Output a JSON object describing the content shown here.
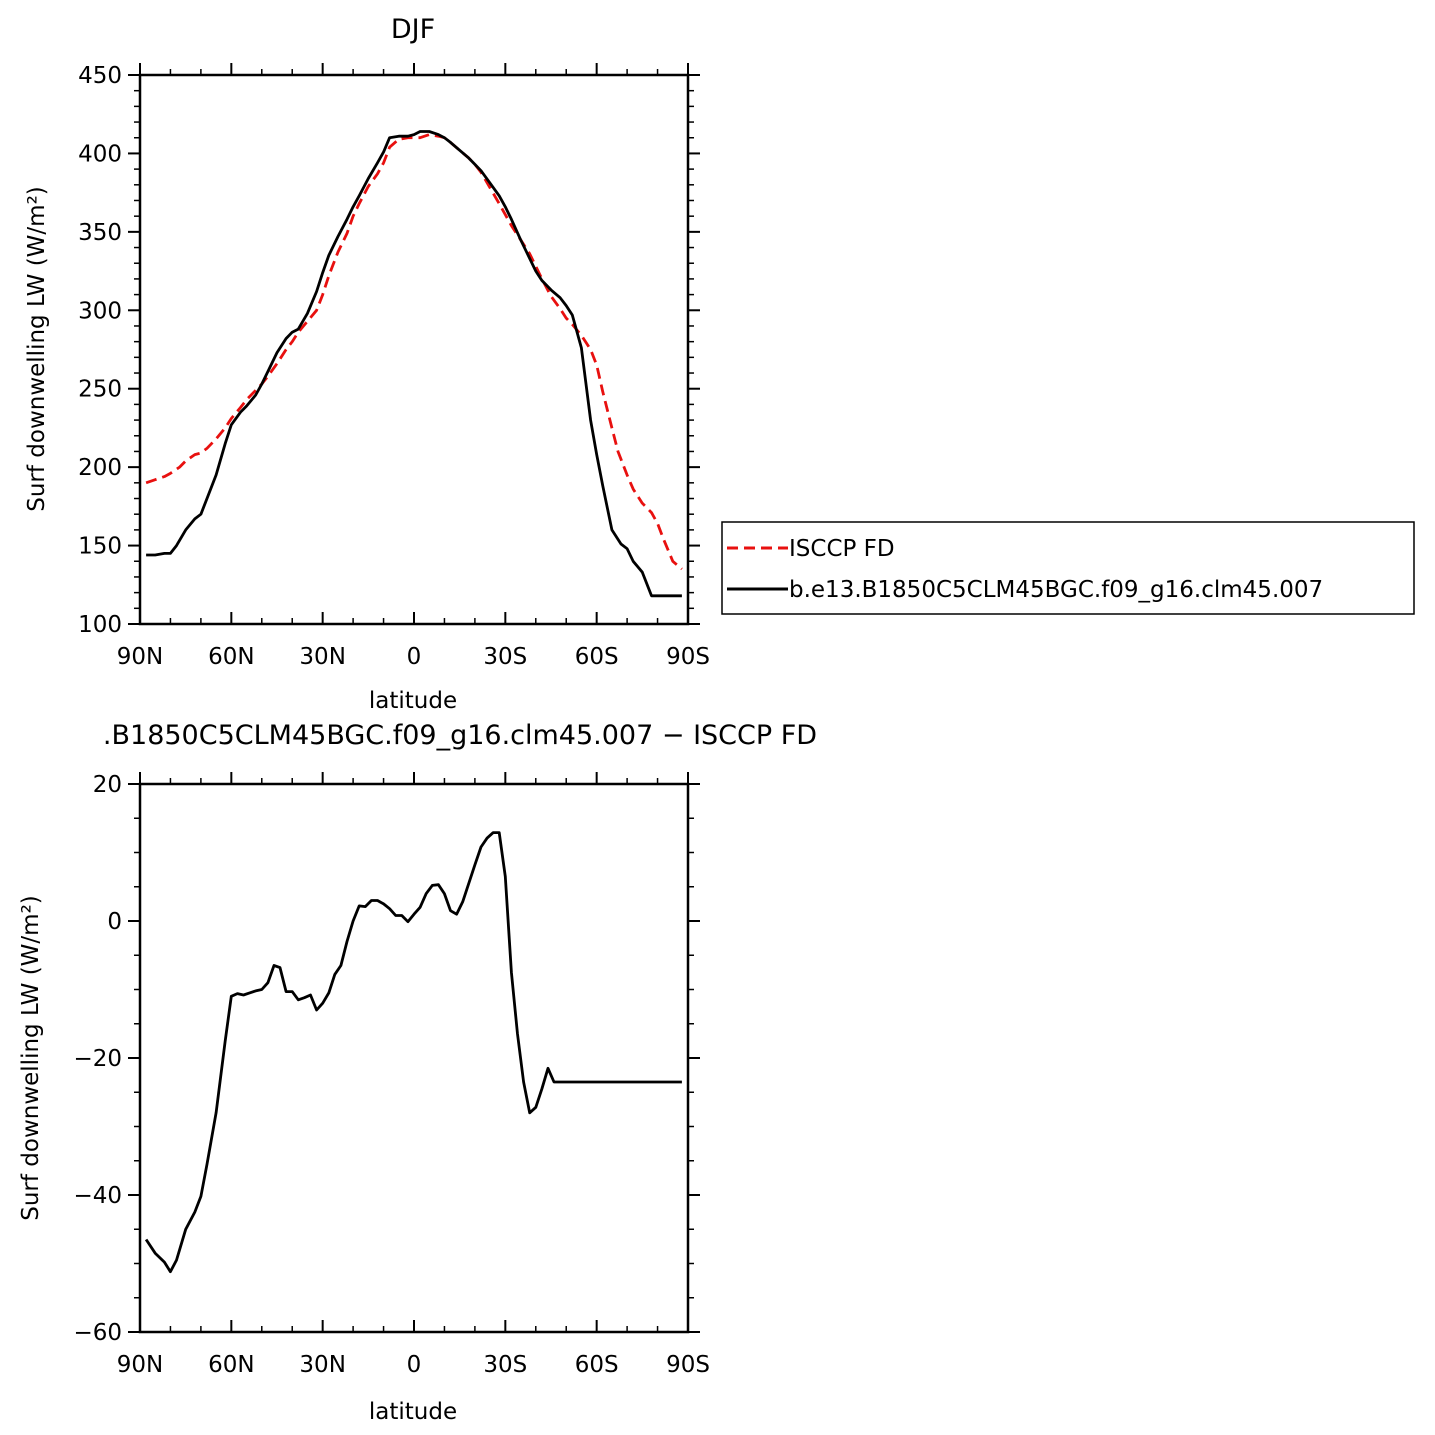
{
  "colors": {
    "obs": "#e8100f",
    "model": "#000000"
  },
  "chart_data": [
    {
      "type": "line",
      "title": "DJF",
      "xlabel": "latitude",
      "ylabel": "Surf downwelling LW (W/m²)",
      "xlim": [
        -90,
        90
      ],
      "ylim": [
        100,
        450
      ],
      "xticks": [
        -90,
        -60,
        -30,
        0,
        30,
        60,
        90
      ],
      "xtick_labels": [
        "90N",
        "60N",
        "30N",
        "0",
        "30S",
        "60S",
        "90S"
      ],
      "yticks": [
        100,
        150,
        200,
        250,
        300,
        350,
        400,
        450
      ],
      "ytick_labels": [
        "100",
        "150",
        "200",
        "250",
        "300",
        "350",
        "400",
        "450"
      ],
      "legend": "right",
      "series": [
        {
          "name": "ISCCP FD",
          "style": "dashed",
          "x": [
            -88,
            -85,
            -82,
            -80,
            -77,
            -75,
            -72,
            -70,
            -68,
            -65,
            -62,
            -60,
            -57,
            -55,
            -52,
            -50,
            -48,
            -45,
            -42,
            -40,
            -38,
            -35,
            -32,
            -30,
            -28,
            -25,
            -22,
            -20,
            -18,
            -15,
            -12,
            -10,
            -8,
            -5,
            -2,
            0,
            2,
            5,
            8,
            10,
            12,
            15,
            18,
            20,
            22,
            25,
            28,
            30,
            32,
            35,
            38,
            40,
            42,
            45,
            48,
            50,
            52,
            55,
            58,
            60,
            62,
            65,
            67,
            70,
            72,
            75,
            78,
            80,
            82,
            85,
            88
          ],
          "y": [
            190,
            192,
            194,
            196,
            200,
            204,
            208,
            209,
            212,
            218,
            225,
            231,
            238,
            243,
            249,
            253,
            258,
            266,
            275,
            280,
            286,
            293,
            300,
            310,
            322,
            337,
            349,
            360,
            368,
            379,
            387,
            394,
            404,
            409,
            410,
            410,
            410,
            412,
            411,
            410,
            407,
            402,
            397,
            393,
            388,
            378,
            368,
            361,
            354,
            345,
            336,
            328,
            320,
            309,
            301,
            295,
            291,
            284,
            275,
            265,
            248,
            225,
            210,
            195,
            186,
            177,
            171,
            164,
            154,
            140,
            135
          ]
        },
        {
          "name": "b.e13.B1850C5CLM45BGC.f09_g16.clm45.007",
          "style": "solid",
          "x": [
            -88,
            -85,
            -82,
            -80,
            -78,
            -75,
            -72,
            -70,
            -68,
            -65,
            -62,
            -60,
            -57,
            -55,
            -52,
            -50,
            -48,
            -45,
            -42,
            -40,
            -38,
            -35,
            -32,
            -30,
            -28,
            -25,
            -22,
            -20,
            -18,
            -15,
            -12,
            -10,
            -8,
            -5,
            -2,
            0,
            2,
            5,
            8,
            10,
            12,
            15,
            18,
            20,
            22,
            25,
            28,
            30,
            32,
            35,
            38,
            40,
            42,
            45,
            48,
            50,
            52,
            55,
            58,
            60,
            62,
            65,
            68,
            70,
            72,
            75,
            78,
            80,
            82,
            85,
            88
          ],
          "y": [
            144,
            144,
            145,
            145,
            150,
            160,
            167,
            170,
            180,
            195,
            215,
            227,
            235,
            239,
            246,
            253,
            261,
            273,
            282,
            286,
            288,
            298,
            312,
            324,
            335,
            347,
            358,
            366,
            373,
            384,
            394,
            401,
            410,
            411,
            411,
            412,
            414,
            414,
            412,
            410,
            407,
            402,
            397,
            393,
            389,
            381,
            373,
            366,
            358,
            345,
            333,
            325,
            319,
            313,
            308,
            303,
            297,
            276,
            230,
            208,
            188,
            160,
            151,
            148,
            140,
            133,
            118,
            118,
            118,
            118,
            118
          ]
        }
      ]
    },
    {
      "type": "line",
      "title": ".B1850C5CLM45BGC.f09_g16.clm45.007 − ISCCP FD",
      "xlabel": "latitude",
      "ylabel": "Surf downwelling LW (W/m²)",
      "xlim": [
        -90,
        90
      ],
      "ylim": [
        -60,
        20
      ],
      "xticks": [
        -90,
        -60,
        -30,
        0,
        30,
        60,
        90
      ],
      "xtick_labels": [
        "90N",
        "60N",
        "30N",
        "0",
        "30S",
        "60S",
        "90S"
      ],
      "yticks": [
        -60,
        -40,
        -20,
        0,
        20
      ],
      "ytick_labels": [
        "−60",
        "−40",
        "−20",
        "0",
        "20"
      ],
      "series": [
        {
          "style": "solid",
          "x": [
            -88,
            -85,
            -82,
            -80,
            -78,
            -75,
            -72,
            -70,
            -68,
            -65,
            -62,
            -60,
            -58,
            -56,
            -54,
            -52,
            -50,
            -48,
            -46,
            -44,
            -42,
            -40,
            -38,
            -36,
            -34,
            -32,
            -30,
            -28,
            -26,
            -24,
            -22,
            -20,
            -18,
            -16,
            -14,
            -12,
            -10,
            -8,
            -6,
            -4,
            -2,
            0,
            2,
            4,
            6,
            8,
            10,
            12,
            14,
            16,
            18,
            20,
            22,
            24,
            26,
            28,
            30,
            32,
            34,
            36,
            38,
            40,
            42,
            44,
            46,
            48,
            50,
            52,
            54,
            56,
            58,
            60,
            62,
            64,
            66,
            68,
            70,
            72,
            74,
            76,
            78,
            80,
            82,
            84,
            86,
            88
          ],
          "y": [
            -46.5,
            -48.5,
            -49.8,
            -51.2,
            -49.5,
            -45.0,
            -42.5,
            -40.2,
            -35.5,
            -28.0,
            -17.5,
            -11.0,
            -10.6,
            -10.8,
            -10.5,
            -10.2,
            -10.0,
            -9.0,
            -6.5,
            -6.8,
            -10.3,
            -10.3,
            -11.5,
            -11.2,
            -10.8,
            -13.0,
            -12.0,
            -10.5,
            -7.8,
            -6.5,
            -3.0,
            0.0,
            2.2,
            2.1,
            3.0,
            3.0,
            2.5,
            1.8,
            0.8,
            0.8,
            -0.1,
            1.0,
            2.0,
            4.0,
            5.2,
            5.3,
            4.0,
            1.5,
            1.0,
            2.8,
            5.5,
            8.2,
            10.8,
            12.1,
            12.9,
            12.9,
            6.5,
            -7.5,
            -16.5,
            -23.5,
            -28.0,
            -27.2,
            -24.5,
            -21.5,
            -23.5,
            -23.5,
            -23.5,
            -23.5,
            -23.5,
            -23.5,
            -23.5,
            -23.5,
            -23.5,
            -23.5,
            -23.5,
            -23.5,
            -23.5,
            -23.5,
            -23.5,
            -23.5,
            -23.5,
            -23.5,
            -23.5,
            -23.5,
            -23.5,
            -23.5
          ]
        }
      ]
    }
  ]
}
